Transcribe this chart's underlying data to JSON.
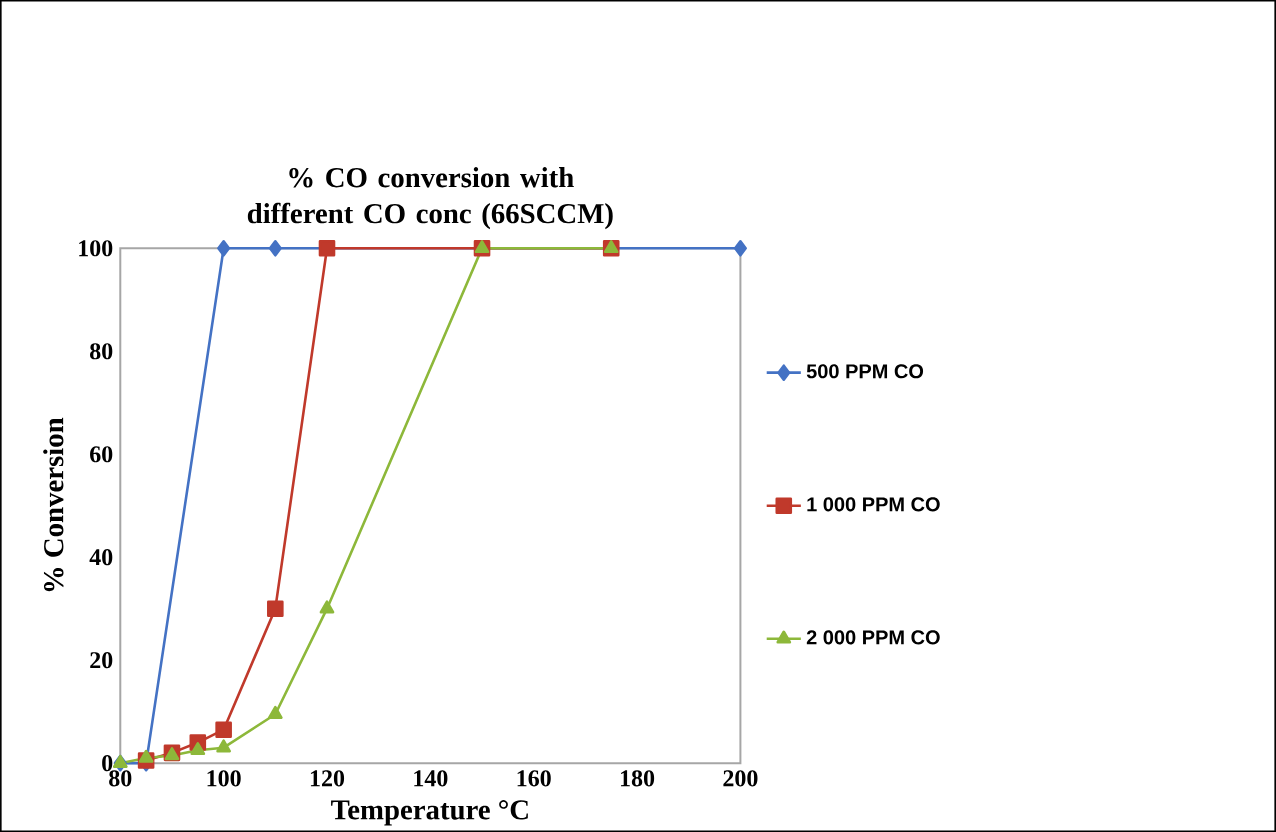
{
  "chart_data": {
    "type": "line",
    "title": "% CO conversion with different CO conc (66SCCM)",
    "xlabel": "Temperature °C",
    "ylabel": "% Conversion",
    "xlim": [
      80,
      200
    ],
    "xticks": [
      80,
      100,
      120,
      140,
      160,
      180,
      200
    ],
    "ylim": [
      0,
      100
    ],
    "yticks": [
      0,
      20,
      40,
      60,
      80,
      100
    ],
    "legend": "right",
    "grid": false,
    "series": [
      {
        "name": "500 PPM CO",
        "color": "#4472c4",
        "marker": "diamond",
        "x": [
          80,
          85,
          100,
          110,
          200
        ],
        "values": [
          0,
          0,
          100,
          100,
          100
        ]
      },
      {
        "name": "1 000 PPM CO",
        "color": "#c0392b",
        "marker": "square",
        "x": [
          85,
          90,
          95,
          100,
          110,
          120,
          150,
          175
        ],
        "values": [
          0.5,
          2,
          4,
          6.5,
          30,
          100,
          100,
          100
        ]
      },
      {
        "name": "2 000 PPM CO",
        "color": "#8db83a",
        "marker": "triangle",
        "x": [
          80,
          85,
          90,
          95,
          100,
          110,
          120,
          150,
          175
        ],
        "values": [
          0,
          1,
          1.5,
          2.5,
          3,
          9.5,
          30,
          100,
          100
        ]
      }
    ]
  }
}
